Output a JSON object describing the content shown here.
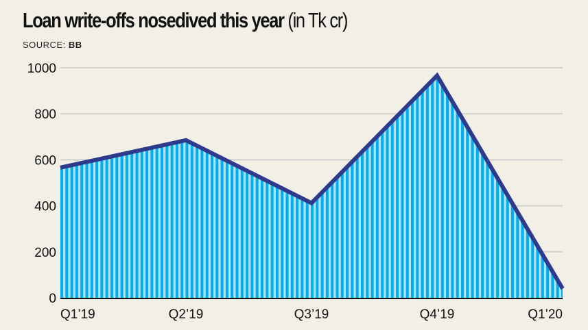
{
  "chart_data": {
    "type": "area",
    "title": "Loan write-offs nosedived this year",
    "title_suffix": "(in Tk cr)",
    "source_label": "SOURCE:",
    "source": "BB",
    "categories": [
      "Q1'19",
      "Q2'19",
      "Q3'19",
      "Q4'19",
      "Q1'20"
    ],
    "values": [
      566,
      685,
      412,
      966,
      40
    ],
    "ylim": [
      0,
      1000
    ],
    "yticks": [
      0,
      200,
      400,
      600,
      800,
      1000
    ],
    "grid": true,
    "legend": "none",
    "colors": {
      "line": "#2e3a8c",
      "stripe_dark": "#00aeef",
      "stripe_light": "#b2e2ee",
      "grid": "#d0d0d0",
      "background": "#f2efe7"
    }
  }
}
